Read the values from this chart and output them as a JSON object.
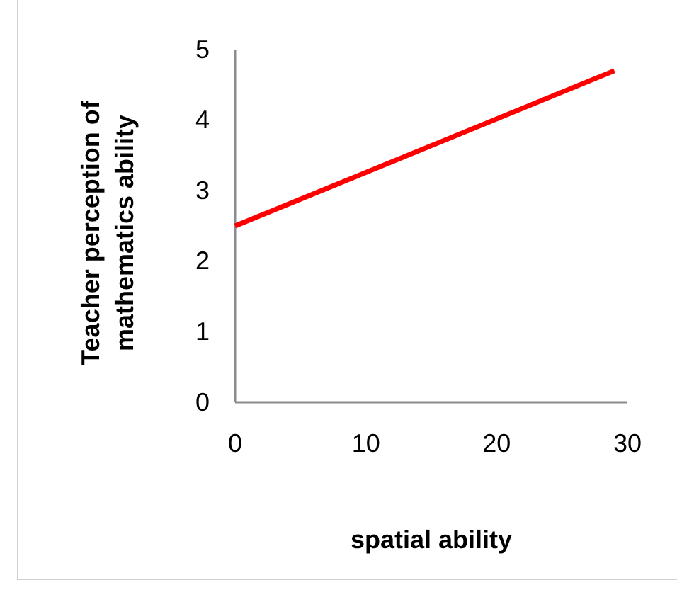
{
  "chart_data": {
    "type": "line",
    "xlabel": "spatial ability",
    "ylabel": "Teacher perception of mathematics ability",
    "x": [
      0,
      29
    ],
    "series": [
      {
        "color": "#ff0000",
        "values": [
          2.5,
          4.7
        ]
      }
    ],
    "xlim": [
      0,
      30
    ],
    "xticks": [
      0,
      10,
      20,
      30
    ],
    "ylim": [
      0,
      5
    ],
    "yticks": [
      0,
      1,
      2,
      3,
      4,
      5
    ],
    "grid": false,
    "marker": "none",
    "line_style": "solid"
  }
}
